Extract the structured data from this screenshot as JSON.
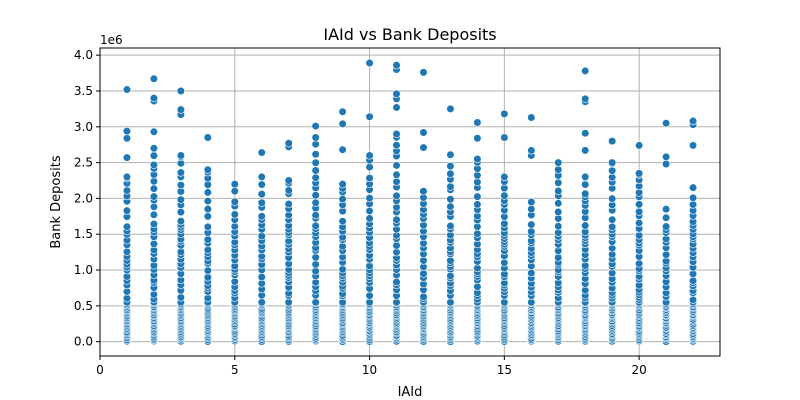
{
  "chart_data": {
    "type": "scatter",
    "title": "IAId vs Bank Deposits",
    "xlabel": "IAId",
    "ylabel": "Bank Deposits",
    "y_offset_label": "1e6",
    "xlim": [
      0,
      23
    ],
    "ylim": [
      -0.2,
      4.1
    ],
    "y_scale_multiplier": 1000000,
    "xticks": [
      0,
      5,
      10,
      15,
      20
    ],
    "xtick_labels": [
      "0",
      "5",
      "10",
      "15",
      "20"
    ],
    "yticks": [
      0.0,
      0.5,
      1.0,
      1.5,
      2.0,
      2.5,
      3.0,
      3.5,
      4.0
    ],
    "ytick_labels": [
      "0.0",
      "0.5",
      "1.0",
      "1.5",
      "2.0",
      "2.5",
      "3.0",
      "3.5",
      "4.0"
    ],
    "grid": true,
    "marker_color": "#1f77b4",
    "columns": [
      {
        "x": 1,
        "y_max": 2.3,
        "outliers": [
          2.57,
          2.84,
          2.94,
          3.52
        ]
      },
      {
        "x": 2,
        "y_max": 2.7,
        "outliers": [
          2.93,
          3.36,
          3.4,
          3.67
        ]
      },
      {
        "x": 3,
        "y_max": 2.6,
        "outliers": [
          3.17,
          3.24,
          3.5
        ]
      },
      {
        "x": 4,
        "y_max": 2.4,
        "outliers": [
          2.85
        ]
      },
      {
        "x": 5,
        "y_max": 2.2,
        "outliers": []
      },
      {
        "x": 6,
        "y_max": 2.3,
        "outliers": [
          2.64
        ]
      },
      {
        "x": 7,
        "y_max": 2.25,
        "outliers": [
          2.72,
          2.77
        ]
      },
      {
        "x": 8,
        "y_max": 2.85,
        "outliers": [
          3.01
        ]
      },
      {
        "x": 9,
        "y_max": 2.2,
        "outliers": [
          2.68,
          3.04,
          3.21
        ]
      },
      {
        "x": 10,
        "y_max": 2.6,
        "outliers": [
          3.14,
          3.89
        ]
      },
      {
        "x": 11,
        "y_max": 2.9,
        "outliers": [
          3.27,
          3.39,
          3.46,
          3.8,
          3.86
        ]
      },
      {
        "x": 12,
        "y_max": 2.1,
        "outliers": [
          2.71,
          2.92,
          3.76
        ]
      },
      {
        "x": 13,
        "y_max": 2.45,
        "outliers": [
          2.61,
          3.25
        ]
      },
      {
        "x": 14,
        "y_max": 2.55,
        "outliers": [
          2.84,
          3.06
        ]
      },
      {
        "x": 15,
        "y_max": 2.3,
        "outliers": [
          2.85,
          3.18
        ]
      },
      {
        "x": 16,
        "y_max": 1.95,
        "outliers": [
          2.6,
          2.67,
          3.13
        ]
      },
      {
        "x": 17,
        "y_max": 2.5,
        "outliers": []
      },
      {
        "x": 18,
        "y_max": 2.3,
        "outliers": [
          2.67,
          2.91,
          3.35,
          3.39,
          3.78
        ]
      },
      {
        "x": 19,
        "y_max": 2.5,
        "outliers": [
          2.8
        ]
      },
      {
        "x": 20,
        "y_max": 2.35,
        "outliers": [
          2.74
        ]
      },
      {
        "x": 21,
        "y_max": 1.85,
        "outliers": [
          2.48,
          2.58,
          3.05
        ]
      },
      {
        "x": 22,
        "y_max": 2.15,
        "outliers": [
          2.74,
          3.03,
          3.08
        ]
      }
    ]
  }
}
